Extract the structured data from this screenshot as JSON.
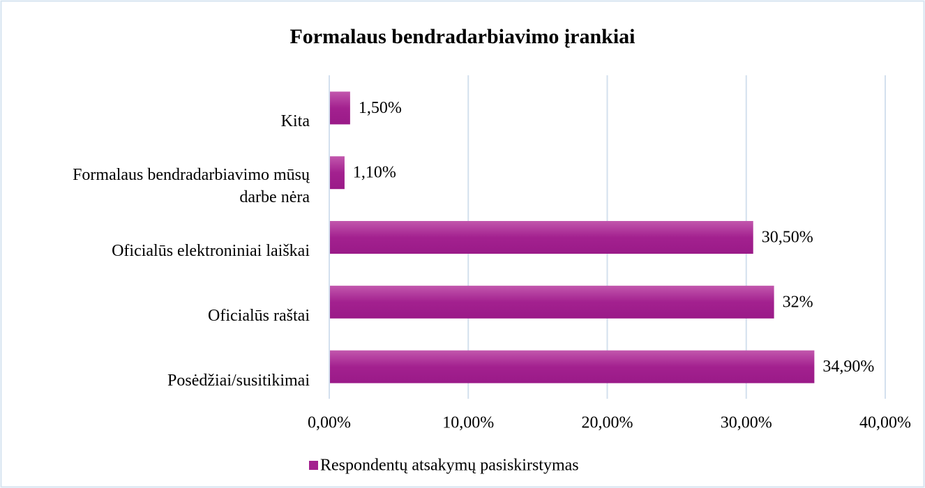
{
  "chart_data": {
    "type": "bar",
    "orientation": "horizontal",
    "title": "Formalaus bendradarbiavimo įrankiai",
    "categories": [
      "Kita",
      "Formalaus bendradarbiavimo mūsų darbe nėra",
      "Oficialūs elektroniniai laiškai",
      "Oficialūs raštai",
      "Posėdžiai/susitikimai"
    ],
    "series": [
      {
        "name": "Respondentų atsakymų pasiskirstymas",
        "color": "#a3218f",
        "values": [
          1.5,
          1.1,
          30.5,
          32,
          34.9
        ],
        "value_labels": [
          "1,50%",
          "1,10%",
          "30,50%",
          "32%",
          "34,90%"
        ]
      }
    ],
    "xlim": [
      0,
      40
    ],
    "xticks": [
      {
        "value": 0,
        "label": "0,00%"
      },
      {
        "value": 10,
        "label": "10,00%"
      },
      {
        "value": 20,
        "label": "20,00%"
      },
      {
        "value": 30,
        "label": "30,00%"
      },
      {
        "value": 40,
        "label": "40,00%"
      }
    ],
    "grid": true,
    "legend": "bottom"
  }
}
